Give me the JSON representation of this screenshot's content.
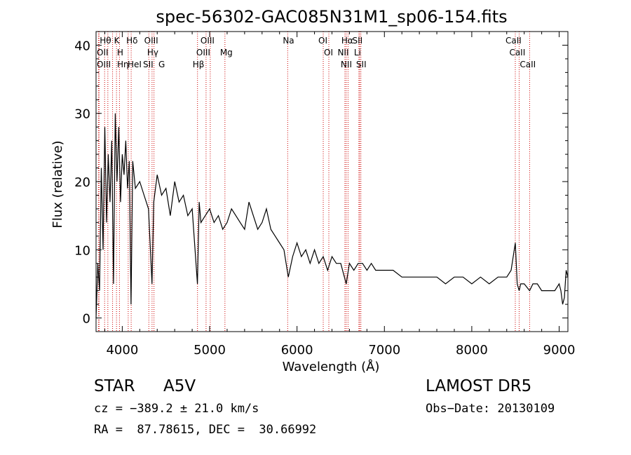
{
  "chart_data": {
    "type": "line",
    "title": "spec-56302-GAC085N31M1_sp06-154.fits",
    "xlabel": "Wavelength (Å)",
    "ylabel": "Flux (relative)",
    "xlim": [
      3700,
      9100
    ],
    "ylim": [
      -2,
      42
    ],
    "x_ticks": [
      4000,
      5000,
      6000,
      7000,
      8000,
      9000
    ],
    "x_tick_labels": [
      "4000",
      "5000",
      "6000",
      "7000",
      "8000",
      "9000"
    ],
    "y_ticks": [
      0,
      10,
      20,
      30,
      40
    ],
    "y_tick_labels": [
      "0",
      "10",
      "20",
      "30",
      "40"
    ],
    "grid": false,
    "series": [
      {
        "color": "#000000",
        "x": [
          3700,
          3720,
          3740,
          3760,
          3780,
          3800,
          3820,
          3840,
          3860,
          3880,
          3900,
          3920,
          3940,
          3960,
          3980,
          4000,
          4020,
          4040,
          4060,
          4080,
          4100,
          4120,
          4150,
          4200,
          4250,
          4300,
          4340,
          4360,
          4400,
          4450,
          4500,
          4550,
          4600,
          4650,
          4700,
          4750,
          4800,
          4860,
          4880,
          4900,
          4950,
          5000,
          5050,
          5100,
          5150,
          5200,
          5250,
          5300,
          5350,
          5400,
          5450,
          5500,
          5550,
          5600,
          5650,
          5700,
          5750,
          5800,
          5850,
          5900,
          5950,
          6000,
          6050,
          6100,
          6150,
          6200,
          6250,
          6300,
          6350,
          6400,
          6450,
          6500,
          6563,
          6600,
          6650,
          6700,
          6750,
          6800,
          6850,
          6900,
          6950,
          7000,
          7100,
          7200,
          7300,
          7400,
          7500,
          7600,
          7700,
          7800,
          7900,
          8000,
          8100,
          8200,
          8300,
          8400,
          8450,
          8498,
          8520,
          8542,
          8560,
          8600,
          8662,
          8700,
          8750,
          8800,
          8850,
          8900,
          8950,
          9000,
          9020,
          9040,
          9060,
          9080,
          9100
        ],
        "y": [
          0,
          8,
          4,
          22,
          10,
          28,
          14,
          24,
          17,
          26,
          5,
          30,
          20,
          28,
          17,
          24,
          21,
          26,
          19,
          23,
          2,
          23,
          19,
          20,
          18,
          16,
          5,
          17,
          21,
          18,
          19,
          15,
          20,
          17,
          18,
          15,
          16,
          5,
          17,
          14,
          15,
          16,
          14,
          15,
          13,
          14,
          16,
          15,
          14,
          13,
          17,
          15,
          13,
          14,
          16,
          13,
          12,
          11,
          10,
          6,
          9,
          11,
          9,
          10,
          8,
          10,
          8,
          9,
          7,
          9,
          8,
          8,
          5,
          8,
          7,
          8,
          8,
          7,
          8,
          7,
          7,
          7,
          7,
          6,
          6,
          6,
          6,
          6,
          5,
          6,
          6,
          5,
          6,
          5,
          6,
          6,
          7,
          11,
          5,
          4,
          5,
          5,
          4,
          5,
          5,
          4,
          4,
          4,
          4,
          5,
          4,
          2,
          3,
          7,
          6
        ]
      }
    ],
    "line_labels": [
      {
        "text": "Hθ",
        "x": 3798
      },
      {
        "text": "OII",
        "x": 3727
      },
      {
        "text": "OIII",
        "x": 3735
      },
      {
        "text": "Hη",
        "x": 3835
      },
      {
        "text": "K",
        "x": 3934
      },
      {
        "text": "HeI",
        "x": 3889
      },
      {
        "text": "H",
        "x": 3968
      },
      {
        "text": "Hδ",
        "x": 4102
      },
      {
        "text": "SII",
        "x": 4068
      },
      {
        "text": "OIII",
        "x": 4363
      },
      {
        "text": "Hγ",
        "x": 4341
      },
      {
        "text": "G",
        "x": 4304
      },
      {
        "text": "OIII",
        "x": 5007
      },
      {
        "text": "OIII",
        "x": 4959
      },
      {
        "text": "Hβ",
        "x": 4861
      },
      {
        "text": "Mg",
        "x": 5175
      },
      {
        "text": "Na",
        "x": 5893
      },
      {
        "text": "OI",
        "x": 6300
      },
      {
        "text": "OI",
        "x": 6364
      },
      {
        "text": "Hα",
        "x": 6563
      },
      {
        "text": "SII",
        "x": 6717
      },
      {
        "text": "NII",
        "x": 6548
      },
      {
        "text": "Li",
        "x": 6708
      },
      {
        "text": "NII",
        "x": 6584
      },
      {
        "text": "SII",
        "x": 6731
      },
      {
        "text": "CaII",
        "x": 8498
      },
      {
        "text": "CaII",
        "x": 8542
      },
      {
        "text": "CaII",
        "x": 8662
      }
    ],
    "line_positions": [
      3727,
      3735,
      3798,
      3835,
      3889,
      3934,
      3968,
      4068,
      4102,
      4304,
      4341,
      4363,
      4861,
      4959,
      5007,
      5175,
      5893,
      6300,
      6364,
      6548,
      6563,
      6584,
      6708,
      6717,
      6731,
      8498,
      8542,
      8662
    ],
    "line_color": "#cc0000"
  },
  "info": {
    "object_class": "STAR",
    "subclass": "A5V",
    "survey": "LAMOST DR5",
    "cz": "cz = −389.2 ± 21.0 km/s",
    "obs_date": "Obs−Date: 20130109",
    "radec": "RA =  87.78615, DEC =  30.66992"
  }
}
